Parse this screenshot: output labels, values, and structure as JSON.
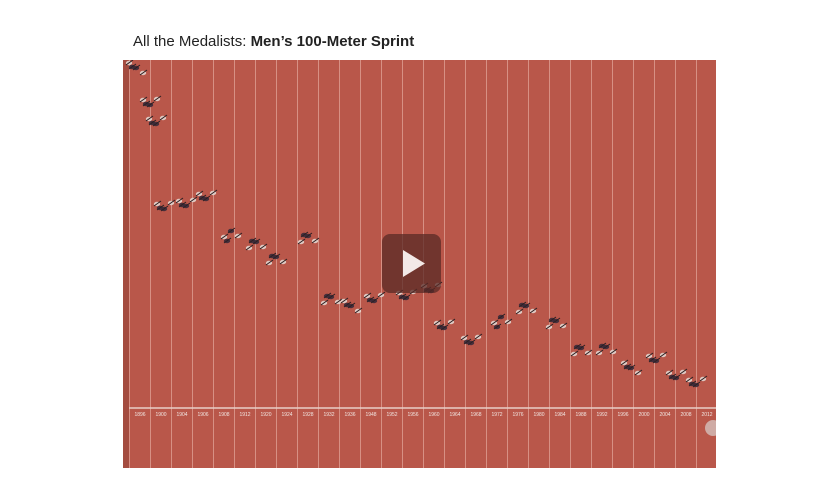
{
  "header": {
    "title_prefix": "All the Medalists:",
    "title_bold": "Men’s 100-Meter Sprint"
  },
  "timeline": {
    "years": [
      "1896",
      "1900",
      "1904",
      "1906",
      "1908",
      "1912",
      "1920",
      "1924",
      "1928",
      "1932",
      "1936",
      "1948",
      "1952",
      "1956",
      "1960",
      "1964",
      "1968",
      "1972",
      "1976",
      "1980",
      "1984",
      "1988",
      "1992",
      "1996",
      "2000",
      "2004",
      "2008",
      "2012"
    ]
  }
}
